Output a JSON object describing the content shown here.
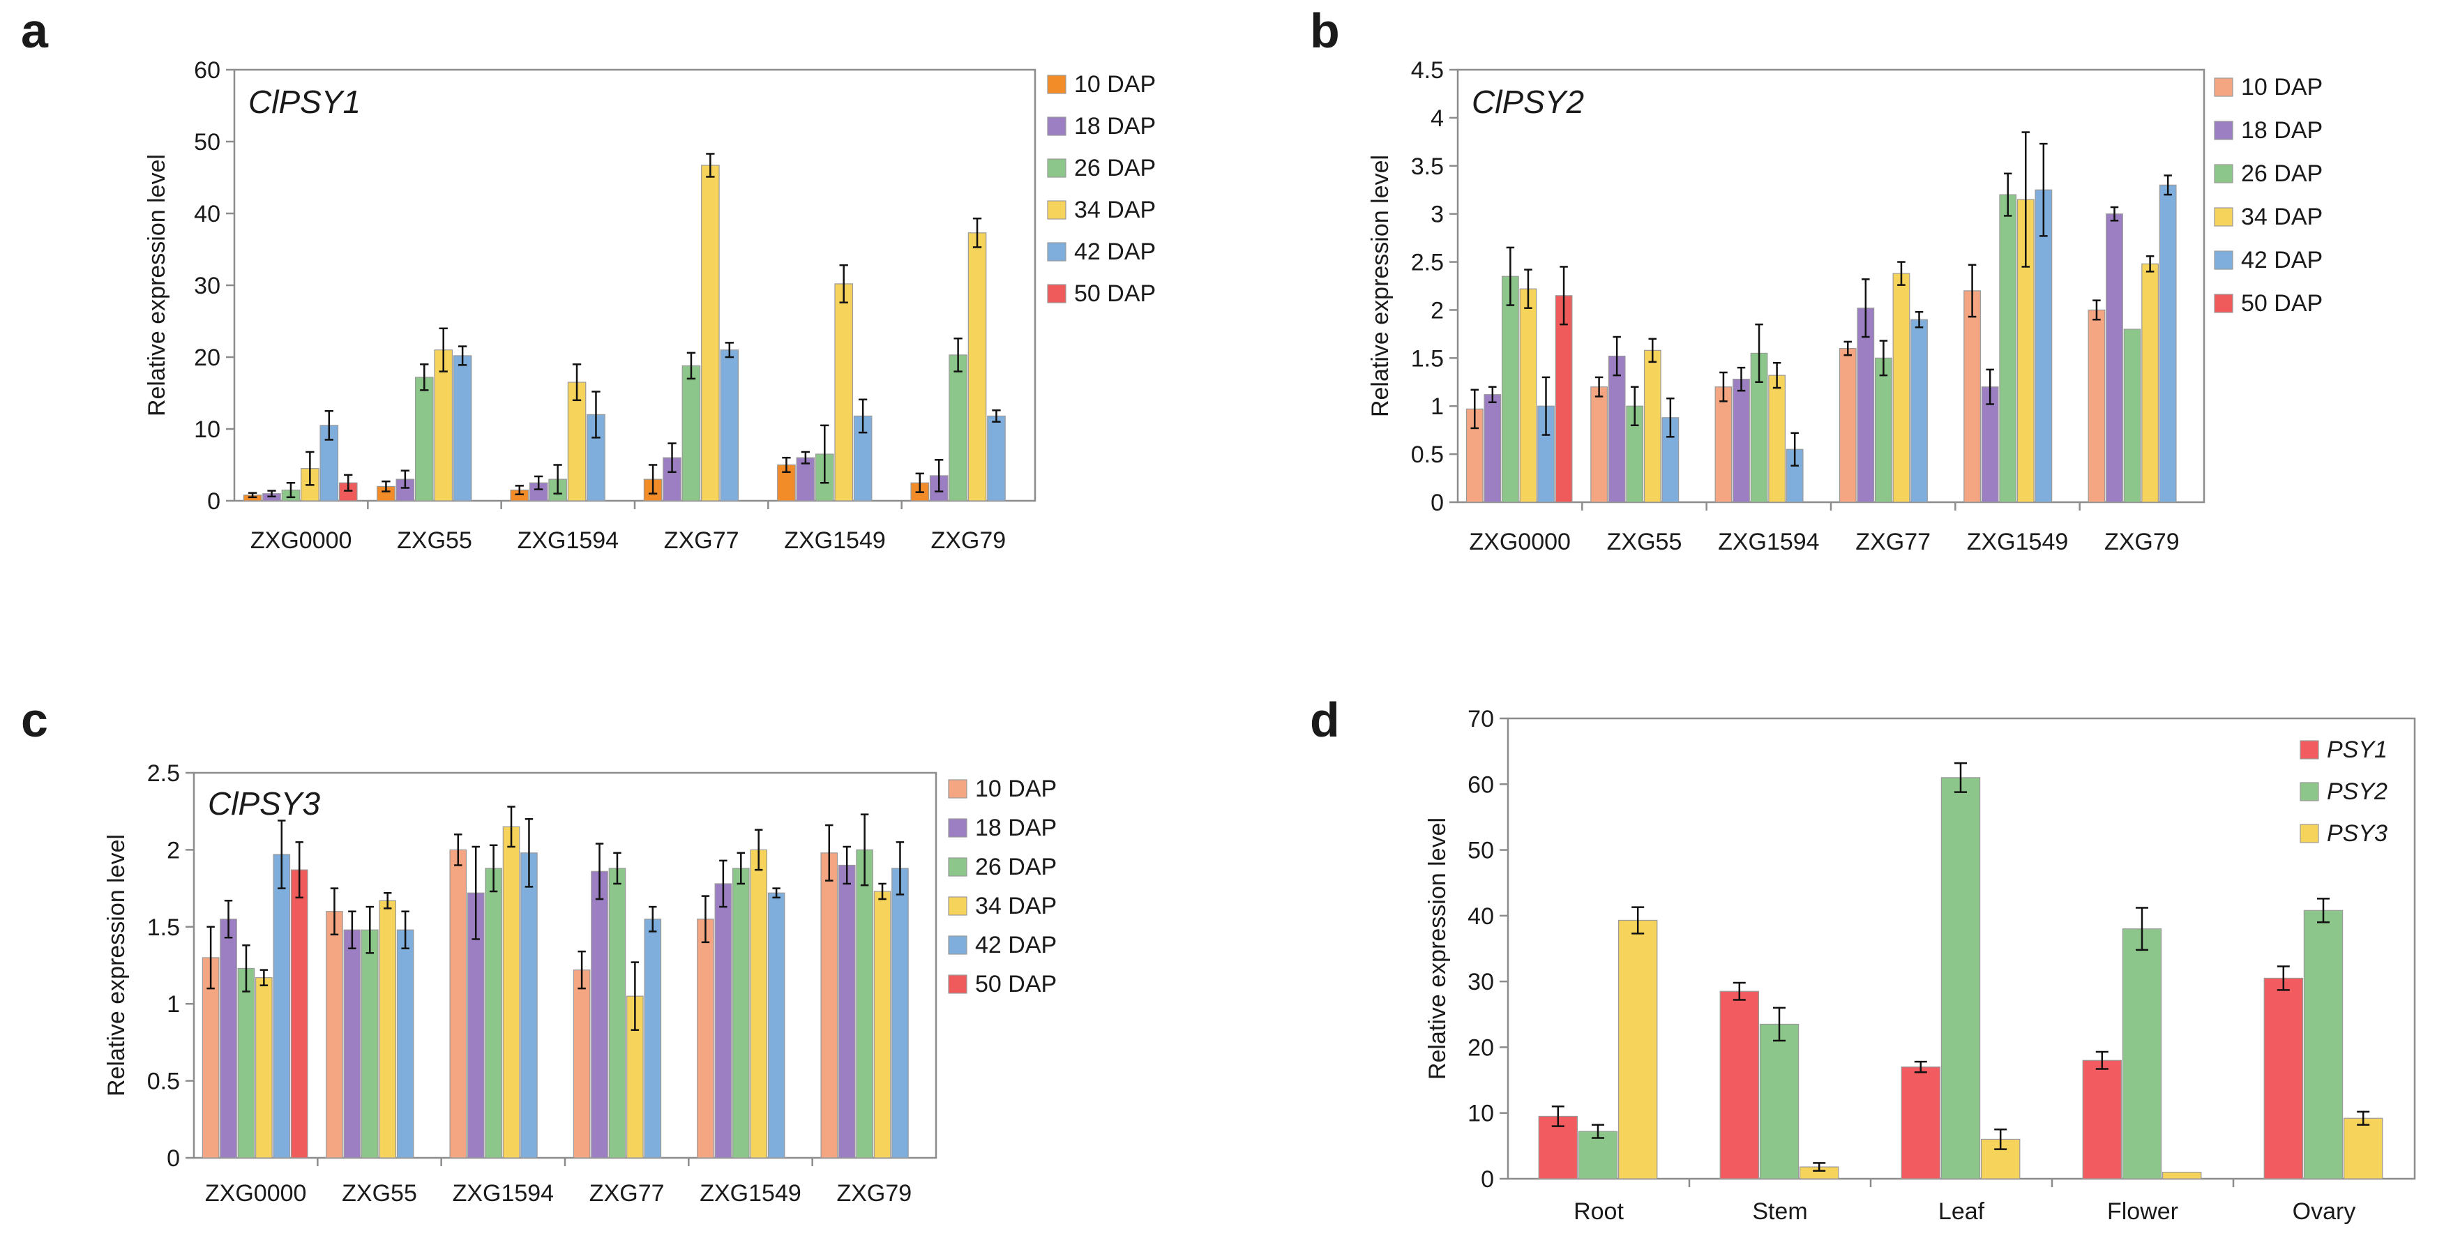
{
  "colors": {
    "DAP10": "#F4A582",
    "DAP18": "#9B7FC2",
    "DAP26": "#8CC68A",
    "DAP34": "#F6D35A",
    "DAP42": "#7FAEDC",
    "DAP50": "#EF5B5B",
    "DAP10_a": "#F28C28",
    "PSY1": "#F25C60",
    "PSY2": "#8CC68A",
    "PSY3": "#F6D35A"
  },
  "chart_data": [
    {
      "panel": "a",
      "type": "bar",
      "title": "ClPSY1",
      "ylabel": "Relative expression level",
      "xlabel": "",
      "ylim": [
        0,
        60
      ],
      "yticks": [
        0,
        10,
        20,
        30,
        40,
        50,
        60
      ],
      "ytick_labels": [
        "0",
        "10",
        "20",
        "30",
        "40",
        "50",
        "60"
      ],
      "categories": [
        "ZXG0000",
        "ZXG55",
        "ZXG1594",
        "ZXG77",
        "ZXG1549",
        "ZXG79"
      ],
      "legend_position": "right",
      "series": [
        {
          "name": "10 DAP",
          "color": "#F28C28",
          "values": [
            0.8,
            2.0,
            1.5,
            3.0,
            5.0,
            2.5
          ],
          "errors": [
            0.3,
            0.7,
            0.6,
            2.0,
            1.0,
            1.3
          ]
        },
        {
          "name": "18 DAP",
          "color": "#9B7FC2",
          "values": [
            1.0,
            3.0,
            2.5,
            6.0,
            6.0,
            3.5
          ],
          "errors": [
            0.4,
            1.2,
            0.9,
            2.0,
            0.8,
            2.2
          ]
        },
        {
          "name": "26 DAP",
          "color": "#8CC68A",
          "values": [
            1.5,
            17.2,
            3.0,
            18.8,
            6.5,
            20.3
          ],
          "errors": [
            1.0,
            1.8,
            2.0,
            1.8,
            4.0,
            2.3
          ]
        },
        {
          "name": "34 DAP",
          "color": "#F6D35A",
          "values": [
            4.5,
            21.0,
            16.5,
            46.7,
            30.2,
            37.3
          ],
          "errors": [
            2.3,
            3.0,
            2.5,
            1.6,
            2.6,
            2.0
          ]
        },
        {
          "name": "42 DAP",
          "color": "#7FAEDC",
          "values": [
            10.5,
            20.2,
            12.0,
            21.0,
            11.8,
            11.8
          ],
          "errors": [
            2.0,
            1.3,
            3.2,
            1.0,
            2.3,
            0.8
          ]
        },
        {
          "name": "50 DAP",
          "color": "#EF5B5B",
          "values": [
            2.5,
            0,
            0,
            0,
            0,
            0
          ],
          "errors": [
            1.1,
            0,
            0,
            0,
            0,
            0
          ]
        }
      ]
    },
    {
      "panel": "b",
      "type": "bar",
      "title": "ClPSY2",
      "ylabel": "Relative expression level",
      "xlabel": "",
      "ylim": [
        0,
        4.5
      ],
      "yticks": [
        0,
        0.5,
        1,
        1.5,
        2,
        2.5,
        3,
        3.5,
        4,
        4.5
      ],
      "ytick_labels": [
        "0",
        "0.5",
        "1",
        "1.5",
        "2",
        "2.5",
        "3",
        "3.5",
        "4",
        "4.5"
      ],
      "categories": [
        "ZXG0000",
        "ZXG55",
        "ZXG1594",
        "ZXG77",
        "ZXG1549",
        "ZXG79"
      ],
      "legend_position": "right",
      "series": [
        {
          "name": "10 DAP",
          "color": "#F4A582",
          "values": [
            0.97,
            1.2,
            1.2,
            1.6,
            2.2,
            2.0
          ],
          "errors": [
            0.2,
            0.1,
            0.15,
            0.07,
            0.27,
            0.1
          ]
        },
        {
          "name": "18 DAP",
          "color": "#9B7FC2",
          "values": [
            1.12,
            1.52,
            1.28,
            2.02,
            1.2,
            3.0
          ],
          "errors": [
            0.08,
            0.2,
            0.12,
            0.3,
            0.18,
            0.07
          ]
        },
        {
          "name": "26 DAP",
          "color": "#8CC68A",
          "values": [
            2.35,
            1.0,
            1.55,
            1.5,
            3.2,
            1.8
          ],
          "errors": [
            0.3,
            0.2,
            0.3,
            0.18,
            0.22,
            0
          ]
        },
        {
          "name": "34 DAP",
          "color": "#F6D35A",
          "values": [
            2.22,
            1.58,
            1.32,
            2.38,
            3.15,
            2.48
          ],
          "errors": [
            0.2,
            0.12,
            0.13,
            0.12,
            0.7,
            0.08
          ]
        },
        {
          "name": "42 DAP",
          "color": "#7FAEDC",
          "values": [
            1.0,
            0.88,
            0.55,
            1.9,
            3.25,
            3.3
          ],
          "errors": [
            0.3,
            0.2,
            0.17,
            0.08,
            0.48,
            0.1
          ]
        },
        {
          "name": "50 DAP",
          "color": "#EF5B5B",
          "values": [
            2.15,
            0,
            0,
            0,
            0,
            0
          ],
          "errors": [
            0.3,
            0,
            0,
            0,
            0,
            0
          ]
        }
      ]
    },
    {
      "panel": "c",
      "type": "bar",
      "title": "ClPSY3",
      "ylabel": "Relative expression level",
      "xlabel": "",
      "ylim": [
        0,
        2.5
      ],
      "yticks": [
        0,
        0.5,
        1,
        1.5,
        2,
        2.5
      ],
      "ytick_labels": [
        "0",
        "0.5",
        "1",
        "1.5",
        "2",
        "2.5"
      ],
      "categories": [
        "ZXG0000",
        "ZXG55",
        "ZXG1594",
        "ZXG77",
        "ZXG1549",
        "ZXG79"
      ],
      "legend_position": "right",
      "series": [
        {
          "name": "10 DAP",
          "color": "#F4A582",
          "values": [
            1.3,
            1.6,
            2.0,
            1.22,
            1.55,
            1.98
          ],
          "errors": [
            0.2,
            0.15,
            0.1,
            0.12,
            0.15,
            0.18
          ]
        },
        {
          "name": "18 DAP",
          "color": "#9B7FC2",
          "values": [
            1.55,
            1.48,
            1.72,
            1.86,
            1.78,
            1.9
          ],
          "errors": [
            0.12,
            0.12,
            0.3,
            0.18,
            0.15,
            0.12
          ]
        },
        {
          "name": "26 DAP",
          "color": "#8CC68A",
          "values": [
            1.23,
            1.48,
            1.88,
            1.88,
            1.88,
            2.0
          ],
          "errors": [
            0.15,
            0.15,
            0.15,
            0.1,
            0.1,
            0.23
          ]
        },
        {
          "name": "34 DAP",
          "color": "#F6D35A",
          "values": [
            1.17,
            1.67,
            2.15,
            1.05,
            2.0,
            1.73
          ],
          "errors": [
            0.05,
            0.05,
            0.13,
            0.22,
            0.13,
            0.05
          ]
        },
        {
          "name": "42 DAP",
          "color": "#7FAEDC",
          "values": [
            1.97,
            1.48,
            1.98,
            1.55,
            1.72,
            1.88
          ],
          "errors": [
            0.22,
            0.12,
            0.22,
            0.08,
            0.03,
            0.17
          ]
        },
        {
          "name": "50 DAP",
          "color": "#EF5B5B",
          "values": [
            1.87,
            0,
            0,
            0,
            0,
            0
          ],
          "errors": [
            0.18,
            0,
            0,
            0,
            0,
            0
          ]
        }
      ]
    },
    {
      "panel": "d",
      "type": "bar",
      "title": "",
      "ylabel": "Relative expression level",
      "xlabel": "",
      "ylim": [
        0,
        70
      ],
      "yticks": [
        0,
        10,
        20,
        30,
        40,
        50,
        60,
        70
      ],
      "ytick_labels": [
        "0",
        "10",
        "20",
        "30",
        "40",
        "50",
        "60",
        "70"
      ],
      "categories": [
        "Root",
        "Stem",
        "Leaf",
        "Flower",
        "Ovary"
      ],
      "legend_position": "top-right",
      "series": [
        {
          "name": "PSY1",
          "color": "#F25C60",
          "values": [
            9.5,
            28.5,
            17.0,
            18.0,
            30.5
          ],
          "errors": [
            1.5,
            1.3,
            0.8,
            1.3,
            1.8
          ]
        },
        {
          "name": "PSY2",
          "color": "#8CC68A",
          "values": [
            7.2,
            23.5,
            61.0,
            38.0,
            40.8
          ],
          "errors": [
            1.0,
            2.5,
            2.2,
            3.2,
            1.8
          ]
        },
        {
          "name": "PSY3",
          "color": "#F6D35A",
          "values": [
            39.3,
            1.8,
            6.0,
            1.0,
            9.2
          ],
          "errors": [
            2.0,
            0.6,
            1.5,
            0,
            1.0
          ]
        }
      ]
    }
  ]
}
